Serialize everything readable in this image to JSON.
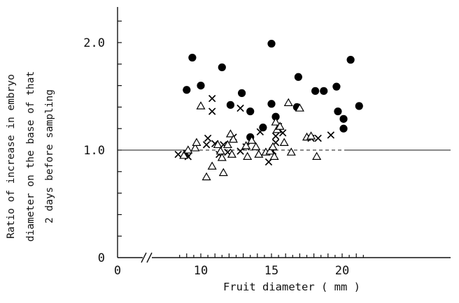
{
  "chart_data": {
    "type": "scatter",
    "title": "",
    "xlabel": "Fruit diameter ( mm )",
    "ylabel_lines": [
      "Ratio of increase in embryo",
      "diameter on the base of that",
      "2 days before sampling"
    ],
    "xlim": [
      0,
      22
    ],
    "ylim": [
      0,
      2.4
    ],
    "x_axis_break_after": 0,
    "x_ticks": [
      0,
      10,
      15,
      20
    ],
    "x_tick_labels": [
      "0",
      "10",
      "15",
      "20"
    ],
    "y_ticks": [
      0,
      1.0,
      2.0
    ],
    "y_tick_labels": [
      "0",
      "1.0",
      "2.0"
    ],
    "reference_line_y": 1.0,
    "grid": false,
    "legend": "none",
    "series": [
      {
        "marker": "filled-circle",
        "points": [
          [
            9.0,
            1.56
          ],
          [
            9.4,
            1.86
          ],
          [
            10.0,
            1.6
          ],
          [
            11.5,
            1.77
          ],
          [
            12.1,
            1.42
          ],
          [
            12.9,
            1.53
          ],
          [
            13.5,
            1.36
          ],
          [
            13.5,
            1.12
          ],
          [
            14.4,
            1.21
          ],
          [
            15.0,
            1.99
          ],
          [
            15.0,
            1.43
          ],
          [
            15.3,
            1.31
          ],
          [
            16.9,
            1.68
          ],
          [
            16.8,
            1.4
          ],
          [
            18.1,
            1.55
          ],
          [
            18.7,
            1.55
          ],
          [
            19.6,
            1.59
          ],
          [
            19.7,
            1.36
          ],
          [
            20.1,
            1.29
          ],
          [
            20.1,
            1.2
          ],
          [
            20.6,
            1.84
          ],
          [
            21.2,
            1.41
          ]
        ]
      },
      {
        "marker": "cross",
        "points": [
          [
            8.4,
            0.96
          ],
          [
            9.0,
            0.97
          ],
          [
            9.1,
            0.94
          ],
          [
            10.4,
            1.05
          ],
          [
            10.5,
            1.11
          ],
          [
            10.8,
            1.48
          ],
          [
            10.8,
            1.36
          ],
          [
            11.0,
            1.06
          ],
          [
            11.3,
            0.96
          ],
          [
            11.6,
            1.05
          ],
          [
            11.9,
            0.98
          ],
          [
            12.3,
            1.12
          ],
          [
            12.8,
            1.39
          ],
          [
            12.8,
            0.99
          ],
          [
            13.2,
            1.03
          ],
          [
            14.2,
            1.17
          ],
          [
            14.8,
            0.89
          ],
          [
            15.1,
            0.99
          ],
          [
            15.3,
            1.07
          ],
          [
            15.3,
            1.13
          ],
          [
            15.5,
            1.22
          ],
          [
            15.8,
            1.16
          ],
          [
            17.8,
            1.11
          ],
          [
            18.3,
            1.11
          ],
          [
            19.2,
            1.14
          ]
        ]
      },
      {
        "marker": "open-triangle",
        "points": [
          [
            8.8,
            0.95
          ],
          [
            9.1,
            1.0
          ],
          [
            9.6,
            1.02
          ],
          [
            9.7,
            1.07
          ],
          [
            10.0,
            1.41
          ],
          [
            10.4,
            0.75
          ],
          [
            10.8,
            0.85
          ],
          [
            11.2,
            1.05
          ],
          [
            11.4,
            0.99
          ],
          [
            11.5,
            0.93
          ],
          [
            11.6,
            0.79
          ],
          [
            11.9,
            1.05
          ],
          [
            12.2,
            0.96
          ],
          [
            12.1,
            1.15
          ],
          [
            12.3,
            1.1
          ],
          [
            13.2,
            1.04
          ],
          [
            13.3,
            0.94
          ],
          [
            13.6,
            1.09
          ],
          [
            13.9,
            1.03
          ],
          [
            14.1,
            0.96
          ],
          [
            14.6,
            0.98
          ],
          [
            14.9,
            0.99
          ],
          [
            15.1,
            1.03
          ],
          [
            15.2,
            0.94
          ],
          [
            15.3,
            1.26
          ],
          [
            15.4,
            1.19
          ],
          [
            15.6,
            1.22
          ],
          [
            15.9,
            1.07
          ],
          [
            16.2,
            1.44
          ],
          [
            16.4,
            0.98
          ],
          [
            17.0,
            1.39
          ],
          [
            17.5,
            1.12
          ],
          [
            17.8,
            1.13
          ],
          [
            18.2,
            0.94
          ]
        ]
      }
    ]
  }
}
